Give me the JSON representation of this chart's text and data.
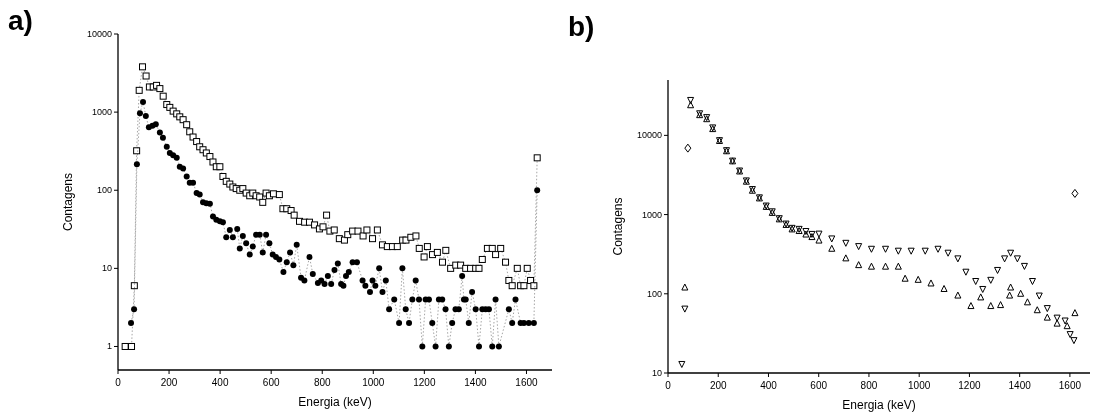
{
  "chart_data": [
    {
      "type": "line",
      "title": "a)",
      "xlabel": "Energia (keV)",
      "ylabel": "Contagens",
      "log": "y",
      "xlim": [
        0,
        1700
      ],
      "ylim": [
        0.5,
        10000
      ],
      "xticks": [
        0,
        200,
        400,
        600,
        800,
        1000,
        1200,
        1400,
        1600
      ],
      "yticks": [
        1,
        10,
        100,
        1000,
        10000
      ],
      "line_style": "dotted",
      "grid": false,
      "series": [
        {
          "color": "#000000",
          "marker": "square",
          "x": [
            28,
            53,
            64,
            73,
            83,
            96,
            110,
            123,
            138,
            151,
            164,
            177,
            191,
            203,
            216,
            230,
            242,
            255,
            269,
            281,
            294,
            308,
            320,
            333,
            346,
            360,
            372,
            385,
            399,
            411,
            424,
            438,
            450,
            463,
            477,
            489,
            502,
            516,
            528,
            541,
            555,
            567,
            580,
            593,
            609,
            632,
            646,
            661,
            678,
            690,
            711,
            731,
            750,
            770,
            789,
            803,
            817,
            830,
            847,
            867,
            887,
            900,
            919,
            940,
            960,
            975,
            997,
            1016,
            1036,
            1055,
            1075,
            1094,
            1115,
            1128,
            1147,
            1167,
            1180,
            1199,
            1212,
            1232,
            1251,
            1271,
            1284,
            1303,
            1323,
            1342,
            1362,
            1381,
            1401,
            1414,
            1427,
            1447,
            1466,
            1479,
            1499,
            1518,
            1531,
            1544,
            1564,
            1577,
            1590,
            1603,
            1616,
            1629,
            1642
          ],
          "values": [
            1,
            1,
            6,
            320,
            1900,
            3800,
            2900,
            2100,
            2100,
            2200,
            2000,
            1600,
            1250,
            1150,
            1030,
            950,
            870,
            800,
            690,
            560,
            480,
            420,
            360,
            330,
            300,
            270,
            230,
            200,
            200,
            150,
            130,
            120,
            110,
            105,
            100,
            105,
            92,
            85,
            92,
            85,
            82,
            70,
            92,
            85,
            90,
            88,
            58,
            58,
            55,
            48,
            40,
            39,
            39,
            36,
            32,
            34,
            48,
            30,
            31,
            24,
            23,
            27,
            30,
            30,
            26,
            31,
            24,
            31,
            20,
            19,
            19,
            19,
            23,
            23,
            25,
            26,
            18,
            14,
            19,
            15,
            16,
            12,
            17,
            10,
            11,
            11,
            10,
            10,
            10,
            10,
            13,
            18,
            18,
            15,
            18,
            12,
            7,
            6,
            10,
            6,
            6,
            10,
            7,
            6,
            260
          ]
        },
        {
          "color": "#000000",
          "marker": "circle",
          "x": [
            51,
            63,
            74,
            86,
            98,
            109,
            121,
            135,
            148,
            164,
            176,
            191,
            203,
            216,
            230,
            242,
            255,
            269,
            281,
            294,
            308,
            320,
            333,
            346,
            360,
            372,
            385,
            399,
            411,
            424,
            438,
            450,
            467,
            477,
            489,
            502,
            516,
            528,
            541,
            555,
            567,
            580,
            593,
            606,
            619,
            632,
            648,
            661,
            674,
            687,
            700,
            717,
            730,
            750,
            763,
            783,
            796,
            809,
            822,
            835,
            848,
            861,
            874,
            883,
            893,
            904,
            919,
            936,
            958,
            969,
            987,
            997,
            1008,
            1023,
            1036,
            1049,
            1062,
            1082,
            1101,
            1114,
            1127,
            1140,
            1153,
            1166,
            1179,
            1192,
            1205,
            1218,
            1231,
            1244,
            1257,
            1270,
            1283,
            1296,
            1309,
            1322,
            1335,
            1348,
            1355,
            1362,
            1374,
            1387,
            1401,
            1414,
            1427,
            1440,
            1453,
            1466,
            1479,
            1492,
            1531,
            1544,
            1557,
            1577,
            1590,
            1609,
            1629,
            1642
          ],
          "values": [
            2,
            3,
            215,
            970,
            1350,
            890,
            640,
            670,
            700,
            550,
            470,
            360,
            300,
            280,
            260,
            200,
            190,
            150,
            125,
            125,
            92,
            88,
            70,
            68,
            67,
            46,
            42,
            40,
            39,
            25,
            31,
            25,
            32,
            18,
            26,
            21,
            15,
            19,
            27,
            27,
            16,
            27,
            21,
            15,
            14,
            13,
            9,
            12,
            16,
            11,
            20,
            7.6,
            7,
            14,
            8.5,
            6.5,
            7,
            6.3,
            8,
            6.3,
            9.5,
            11.5,
            6.3,
            6,
            8,
            9,
            12,
            12,
            7,
            6,
            5,
            7,
            6,
            10,
            5,
            7,
            3,
            4,
            2,
            10,
            3,
            2,
            4,
            7,
            4,
            1,
            4,
            4,
            2,
            1,
            4,
            4,
            3,
            1,
            2,
            3,
            3,
            8,
            4,
            4,
            2,
            5,
            3,
            1,
            3,
            3,
            3,
            1,
            4,
            1,
            3,
            2,
            4,
            2,
            2,
            2,
            2,
            100
          ]
        }
      ]
    },
    {
      "type": "scatter",
      "title": "b)",
      "xlabel": "Energia (keV)",
      "ylabel": "Contagens",
      "log": "y",
      "xlim": [
        0,
        1680
      ],
      "ylim": [
        10,
        50000
      ],
      "xticks": [
        0,
        200,
        400,
        600,
        800,
        1000,
        1200,
        1400,
        1600
      ],
      "yticks": [
        10,
        100,
        1000,
        10000
      ],
      "grid": false,
      "series": [
        {
          "color": "#000000",
          "marker": "triangle-down",
          "x": [
            55,
            67,
            90,
            126,
            154,
            178,
            205,
            233,
            257,
            285,
            312,
            336,
            364,
            391,
            415,
            443,
            470,
            494,
            522,
            549,
            573,
            601,
            652,
            708,
            759,
            810,
            866,
            917,
            968,
            1024,
            1075,
            1115,
            1154,
            1186,
            1225,
            1253,
            1285,
            1312,
            1340,
            1364,
            1391,
            1419,
            1451,
            1478,
            1510,
            1549,
            1581,
            1601,
            1616
          ],
          "values": [
            13,
            65,
            28000,
            19000,
            17000,
            12600,
            8700,
            6500,
            4800,
            3600,
            2700,
            2100,
            1650,
            1300,
            1100,
            900,
            770,
            680,
            660,
            620,
            570,
            575,
            500,
            440,
            400,
            370,
            370,
            350,
            350,
            350,
            370,
            330,
            280,
            190,
            145,
            115,
            150,
            200,
            280,
            330,
            280,
            225,
            145,
            95,
            66,
            50,
            46,
            31,
            26
          ]
        },
        {
          "color": "#000000",
          "marker": "triangle",
          "x": [
            67,
            90,
            126,
            154,
            178,
            205,
            233,
            257,
            285,
            312,
            336,
            364,
            391,
            415,
            443,
            470,
            494,
            522,
            549,
            573,
            601,
            652,
            708,
            759,
            810,
            866,
            917,
            944,
            996,
            1047,
            1099,
            1154,
            1206,
            1245,
            1285,
            1324,
            1360,
            1364,
            1404,
            1431,
            1470,
            1510,
            1549,
            1589,
            1620
          ],
          "values": [
            120,
            24000,
            18000,
            16000,
            12000,
            8500,
            6300,
            4700,
            3500,
            2600,
            2000,
            1600,
            1250,
            1050,
            870,
            740,
            650,
            620,
            560,
            520,
            470,
            370,
            280,
            230,
            220,
            220,
            220,
            155,
            150,
            135,
            115,
            95,
            70,
            90,
            70,
            72,
            95,
            120,
            100,
            78,
            62,
            50,
            42,
            39,
            57
          ]
        },
        {
          "color": "#000000",
          "marker": "diamond",
          "x": [
            79,
            1620
          ],
          "values": [
            6900,
            1850
          ]
        }
      ]
    }
  ]
}
